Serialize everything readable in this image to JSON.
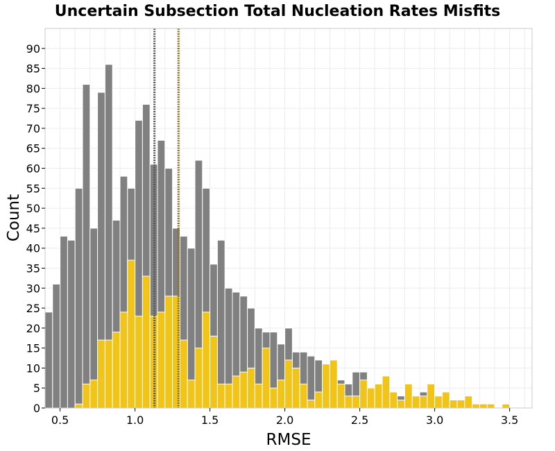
{
  "chart_data": {
    "type": "bar",
    "title": "Uncertain Subsection Total Nucleation Rates Misfits",
    "xlabel": "RMSE",
    "ylabel": "Count",
    "xlim": [
      0.4,
      3.65
    ],
    "ylim": [
      0,
      95
    ],
    "bin_start": 0.4,
    "bin_width": 0.05,
    "grid": true,
    "x_ticks": [
      "0.5",
      "1.0",
      "1.5",
      "2.0",
      "2.5",
      "3.0",
      "3.5"
    ],
    "y_ticks": [
      "0",
      "5",
      "10",
      "15",
      "20",
      "25",
      "30",
      "35",
      "40",
      "45",
      "50",
      "55",
      "60",
      "65",
      "70",
      "75",
      "80",
      "85",
      "90"
    ],
    "series": [
      {
        "color": "#808080",
        "values": [
          24,
          31,
          43,
          42,
          55,
          81,
          45,
          79,
          86,
          47,
          58,
          55,
          72,
          76,
          61,
          67,
          60,
          45,
          43,
          40,
          62,
          55,
          36,
          42,
          30,
          29,
          28,
          25,
          20,
          19,
          19,
          16,
          20,
          14,
          14,
          13,
          12,
          7,
          4,
          7,
          6,
          9,
          9,
          4,
          2,
          6,
          3,
          3,
          6,
          3,
          4,
          2,
          2,
          3,
          1,
          1,
          1,
          0,
          1
        ]
      },
      {
        "color": "#f0c419",
        "values": [
          0,
          0,
          0,
          0,
          1,
          6,
          7,
          17,
          17,
          19,
          24,
          37,
          23,
          33,
          23,
          24,
          28,
          28,
          17,
          7,
          15,
          24,
          18,
          6,
          6,
          8,
          9,
          10,
          6,
          15,
          5,
          7,
          12,
          10,
          6,
          2,
          4,
          11,
          12,
          6,
          3,
          3,
          7,
          5,
          6,
          8,
          4,
          2,
          6,
          3,
          3,
          6,
          3,
          4,
          2,
          2,
          3,
          1,
          1,
          1,
          0,
          1
        ]
      }
    ],
    "vlines": [
      {
        "x": 1.13,
        "color": "#555555"
      },
      {
        "x": 1.29,
        "color": "#8a7020"
      }
    ]
  }
}
